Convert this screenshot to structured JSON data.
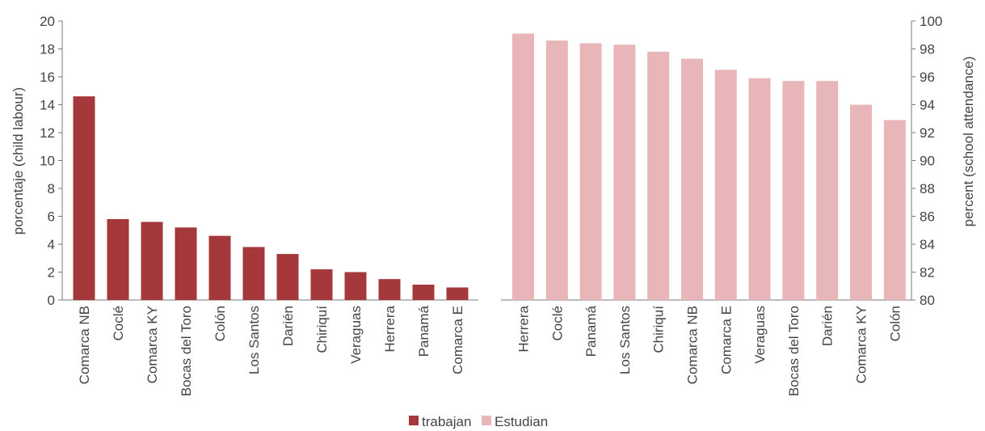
{
  "chart_data": {
    "type": "bar",
    "legend": {
      "placement": "bottom-center",
      "entries": [
        {
          "label": "trabajan",
          "color": "#a5383b"
        },
        {
          "label": "Estudian",
          "color": "#e8b5b8"
        }
      ]
    },
    "grid": false,
    "left_axis": {
      "label": "porcentaje (child labour)",
      "ylim": [
        0,
        20
      ],
      "ticks": [
        "0",
        "2",
        "4",
        "6",
        "8",
        "10",
        "12",
        "14",
        "16",
        "18",
        "20"
      ]
    },
    "right_axis": {
      "label": "percent (school attendance)",
      "ylim": [
        80,
        100
      ],
      "ticks": [
        "80",
        "82",
        "84",
        "86",
        "88",
        "90",
        "92",
        "94",
        "96",
        "98",
        "100"
      ]
    },
    "series": [
      {
        "name": "trabajan",
        "axis": "left",
        "color": "#a5383b",
        "categories": [
          "Comarca NB",
          "Coclé",
          "Comarca KY",
          "Bocas del Toro",
          "Colón",
          "Los Santos",
          "Darién",
          "Chiriquí",
          "Veraguas",
          "Herrera",
          "Panamá",
          "Comarca E"
        ],
        "values": [
          14.6,
          5.8,
          5.6,
          5.2,
          4.6,
          3.8,
          3.3,
          2.2,
          2.0,
          1.5,
          1.1,
          0.9
        ]
      },
      {
        "name": "Estudian",
        "axis": "right",
        "color": "#e8b5b8",
        "categories": [
          "Herrera",
          "Coclé",
          "Panamá",
          "Los Santos",
          "Chiriquí",
          "Comarca NB",
          "Comarca E",
          "Veraguas",
          "Bocas del Toro",
          "Darién",
          "Comarca KY",
          "Colón"
        ],
        "values": [
          99.1,
          98.6,
          98.4,
          98.3,
          97.8,
          97.3,
          96.5,
          95.9,
          95.7,
          95.7,
          94.0,
          92.9
        ]
      }
    ]
  }
}
